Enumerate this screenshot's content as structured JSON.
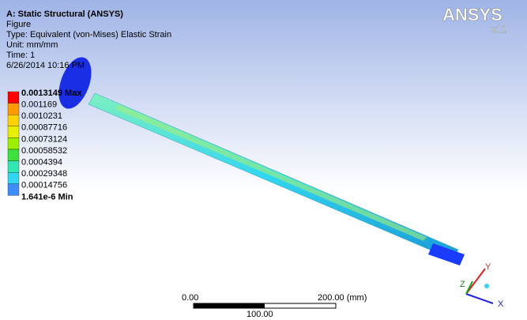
{
  "header": {
    "title": "A: Static Structural (ANSYS)",
    "lines": [
      "Figure",
      "Type: Equivalent (von-Mises) Elastic Strain",
      "Unit: mm/mm",
      "Time: 1",
      "6/26/2014 10:16 PM"
    ]
  },
  "legend": {
    "labels": [
      "0.0013149 Max",
      "0.001169",
      "0.0010231",
      "0.00087716",
      "0.00073124",
      "0.00058532",
      "0.0004394",
      "0.00029348",
      "0.00014756",
      "1.641e-6 Min"
    ],
    "colors": [
      "#ff0000",
      "#ff9a00",
      "#ffd200",
      "#e6f000",
      "#9ef000",
      "#3ee03e",
      "#33e8b0",
      "#33d6f0",
      "#3f8cff",
      "#0000ff"
    ]
  },
  "logo": {
    "name": "ANSYS",
    "version": "v12"
  },
  "scale_bar": {
    "start": "0.00",
    "end": "200.00 (mm)",
    "middle": "100.00"
  },
  "triad": {
    "y": "Y",
    "z": "Z",
    "x": "X"
  }
}
